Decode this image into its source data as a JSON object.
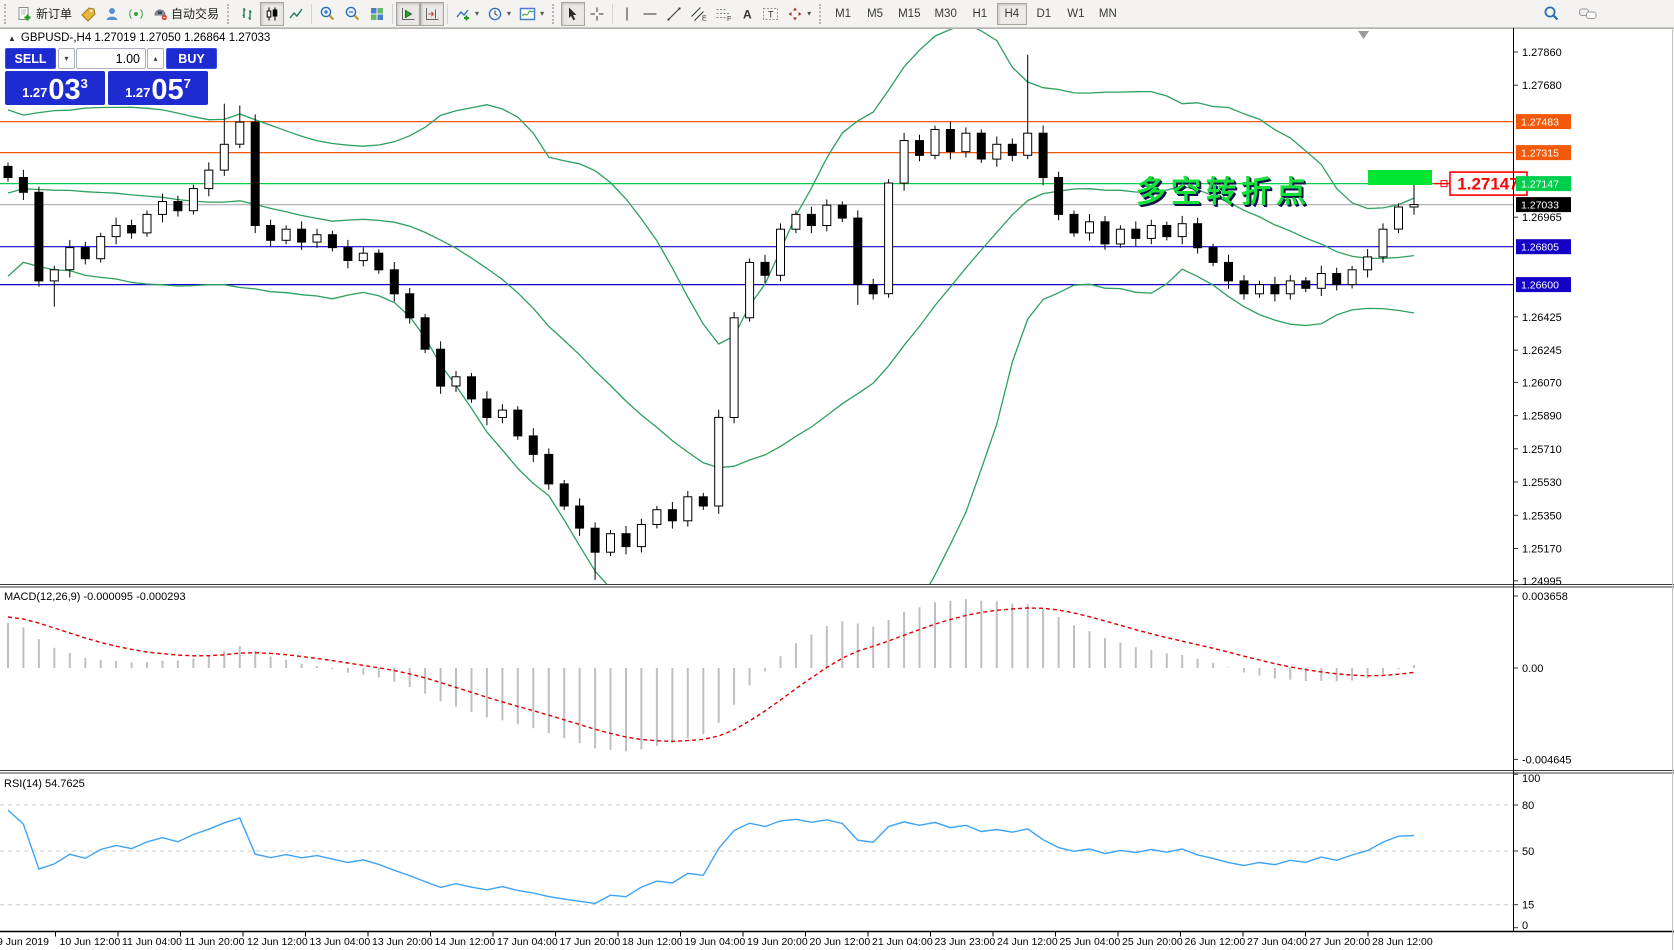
{
  "toolbar": {
    "new_order_label": "新订单",
    "auto_trading_label": "自动交易",
    "timeframes": [
      "M1",
      "M5",
      "M15",
      "M30",
      "H1",
      "H4",
      "D1",
      "W1",
      "MN"
    ],
    "active_timeframe": "H4"
  },
  "trade_panel": {
    "sell_label": "SELL",
    "buy_label": "BUY",
    "volume": "1.00",
    "sell_prefix": "1.27",
    "sell_big": "03",
    "sell_sup": "3",
    "buy_prefix": "1.27",
    "buy_big": "05",
    "buy_sup": "7"
  },
  "chart": {
    "title": "GBPUSD-,H4 1.27019 1.27050 1.26864 1.27033",
    "annotation": "多空转折点",
    "price_tag": "1.27147"
  },
  "indicators": {
    "macd_label": "MACD(12,26,9) -0.000095 -0.000293",
    "rsi_label": "RSI(14) 54.7625",
    "macd_axis": [
      {
        "v": 0.003658,
        "label": "0.003658"
      },
      {
        "v": 0,
        "label": "0.00"
      },
      {
        "v": -0.004645,
        "label": "-0.004645"
      }
    ],
    "rsi_axis": [
      {
        "v": 100,
        "label": "100"
      },
      {
        "v": 80,
        "label": "80"
      },
      {
        "v": 50,
        "label": "50"
      },
      {
        "v": 15,
        "label": "15"
      },
      {
        "v": 0,
        "label": "0"
      }
    ],
    "rsi_levels": [
      80,
      50,
      15
    ]
  },
  "chart_data": {
    "type": "candlestick",
    "symbol": "GBPUSD-",
    "timeframe": "H4",
    "ohlc_display": {
      "open": "1.27019",
      "high": "1.27050",
      "low": "1.26864",
      "close": "1.27033"
    },
    "ylim": [
      1.24995,
      1.2786
    ],
    "macd_ylim": [
      -0.004645,
      0.003658
    ],
    "rsi_ylim": [
      0,
      100
    ],
    "y_ticks": [
      {
        "v": 1.2786,
        "label": "1.27860"
      },
      {
        "v": 1.2768,
        "label": "1.27680"
      },
      {
        "v": 1.26965,
        "label": "1.26965"
      },
      {
        "v": 1.26425,
        "label": "1.26425"
      },
      {
        "v": 1.26245,
        "label": "1.26245"
      },
      {
        "v": 1.2607,
        "label": "1.26070"
      },
      {
        "v": 1.2589,
        "label": "1.25890"
      },
      {
        "v": 1.2571,
        "label": "1.25710"
      },
      {
        "v": 1.2553,
        "label": "1.25530"
      },
      {
        "v": 1.2535,
        "label": "1.25350"
      },
      {
        "v": 1.2517,
        "label": "1.25170"
      },
      {
        "v": 1.24995,
        "label": "1.24995"
      }
    ],
    "price_lines": [
      {
        "v": 1.27483,
        "label": "1.27483",
        "color": "#f2590a"
      },
      {
        "v": 1.27315,
        "label": "1.27315",
        "color": "#f2590a"
      },
      {
        "v": 1.27147,
        "label": "1.27147",
        "color": "#00cf4e"
      },
      {
        "v": 1.27033,
        "label": "1.27033",
        "color": "#000000",
        "line_color": "#b6b6b6",
        "role": "bid"
      },
      {
        "v": 1.26805,
        "label": "1.26805",
        "color": "#1500c8"
      },
      {
        "v": 1.266,
        "label": "1.26600",
        "color": "#1500c8"
      }
    ],
    "time_labels": [
      "9 Jun 2019",
      "10 Jun 12:00",
      "11 Jun 04:00",
      "11 Jun 20:00",
      "12 Jun 12:00",
      "13 Jun 04:00",
      "13 Jun 20:00",
      "14 Jun 12:00",
      "17 Jun 04:00",
      "17 Jun 20:00",
      "18 Jun 12:00",
      "19 Jun 04:00",
      "19 Jun 20:00",
      "20 Jun 12:00",
      "21 Jun 04:00",
      "23 Jun 23:00",
      "24 Jun 12:00",
      "25 Jun 04:00",
      "25 Jun 20:00",
      "26 Jun 12:00",
      "27 Jun 04:00",
      "27 Jun 20:00",
      "28 Jun 12:00"
    ],
    "warmup_closes": [
      1.26,
      1.2605,
      1.261,
      1.2616,
      1.2622,
      1.2628,
      1.2634,
      1.264,
      1.2646,
      1.2652,
      1.2658,
      1.2664,
      1.267,
      1.2676,
      1.2682,
      1.2688,
      1.2694,
      1.27,
      1.2706,
      1.2712,
      1.2718,
      1.2724,
      1.2729,
      1.2733,
      1.2735,
      1.2734,
      1.2731,
      1.2728,
      1.2726,
      1.2724
    ],
    "closes": [
      1.2718,
      1.271,
      1.2662,
      1.2668,
      1.268,
      1.2674,
      1.2686,
      1.2692,
      1.2688,
      1.2698,
      1.2705,
      1.27,
      1.2712,
      1.2722,
      1.2736,
      1.2748,
      1.2692,
      1.2684,
      1.269,
      1.2683,
      1.2687,
      1.268,
      1.2673,
      1.2677,
      1.2668,
      1.2655,
      1.2642,
      1.2625,
      1.2605,
      1.261,
      1.2598,
      1.2588,
      1.2592,
      1.2578,
      1.2568,
      1.2552,
      1.254,
      1.2528,
      1.2515,
      1.2525,
      1.2518,
      1.253,
      1.2538,
      1.2532,
      1.2545,
      1.254,
      1.2588,
      1.2642,
      1.2672,
      1.2665,
      1.269,
      1.2698,
      1.2692,
      1.2703,
      1.2696,
      1.266,
      1.2655,
      1.2715,
      1.2738,
      1.273,
      1.2744,
      1.2732,
      1.2742,
      1.2728,
      1.2736,
      1.273,
      1.2742,
      1.2718,
      1.2698,
      1.2688,
      1.2694,
      1.2682,
      1.269,
      1.2685,
      1.2692,
      1.2686,
      1.2693,
      1.268,
      1.2672,
      1.2662,
      1.2655,
      1.266,
      1.2655,
      1.2662,
      1.2658,
      1.2666,
      1.266,
      1.2668,
      1.2675,
      1.269,
      1.2702,
      1.27033
    ],
    "wick_overrides": {
      "3": {
        "l": 1.2648
      },
      "14": {
        "h": 1.2758
      },
      "15": {
        "h": 1.2757
      },
      "38": {
        "l": 1.25
      },
      "55": {
        "l": 1.2649
      },
      "66": {
        "h": 1.27845
      },
      "91": {
        "h": 1.272
      }
    },
    "highlight_rect": {
      "x": 1368,
      "y": 142,
      "w": 64,
      "h": 15,
      "color": "#00e432"
    },
    "bollinger": {
      "period": 20,
      "dev": 2,
      "color": "#2da05f"
    },
    "macd": {
      "fast": 12,
      "slow": 26,
      "signal": 9,
      "value": -9.5e-05,
      "signal_value": -0.000293,
      "hist_color": "#bfbfbf",
      "signal_color": "#de0000"
    },
    "rsi": {
      "period": 14,
      "value": 54.7625,
      "color": "#3fa3f5"
    }
  }
}
